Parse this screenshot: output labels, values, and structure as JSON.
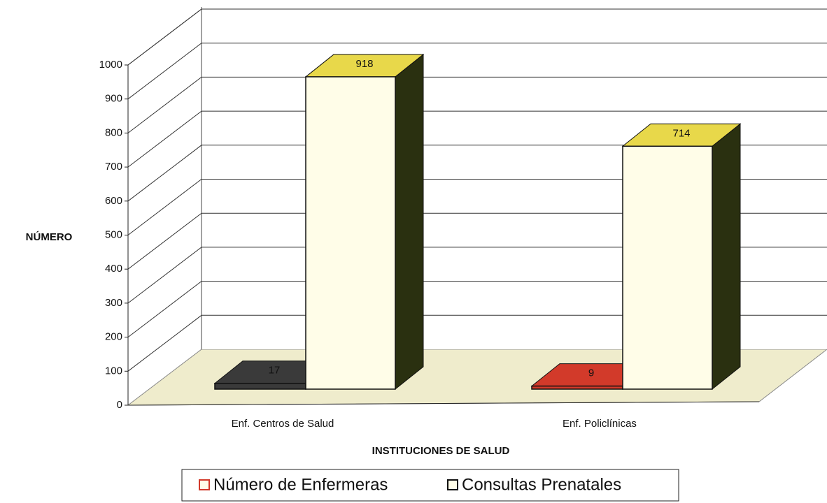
{
  "chart_data": {
    "type": "bar3d",
    "x_label": "INSTITUCIONES DE SALUD",
    "y_label": "NÚMERO",
    "categories": [
      "Enf. Centros de Salud",
      "Enf. Policlínicas"
    ],
    "series": [
      {
        "name": "Número de Enfermeras",
        "color": "#d23a2a",
        "colors": [
          "#3a3a3a",
          "#d23a2a"
        ],
        "values": [
          17,
          9
        ]
      },
      {
        "name": "Consultas Prenatales",
        "color": "#fffde8",
        "top_color": "#e8d84a",
        "side_color": "#2a3010",
        "values": [
          918,
          714
        ]
      }
    ],
    "ylim": [
      0,
      1000
    ],
    "yticks": [
      0,
      100,
      200,
      300,
      400,
      500,
      600,
      700,
      800,
      900,
      1000
    ],
    "grid": true
  }
}
